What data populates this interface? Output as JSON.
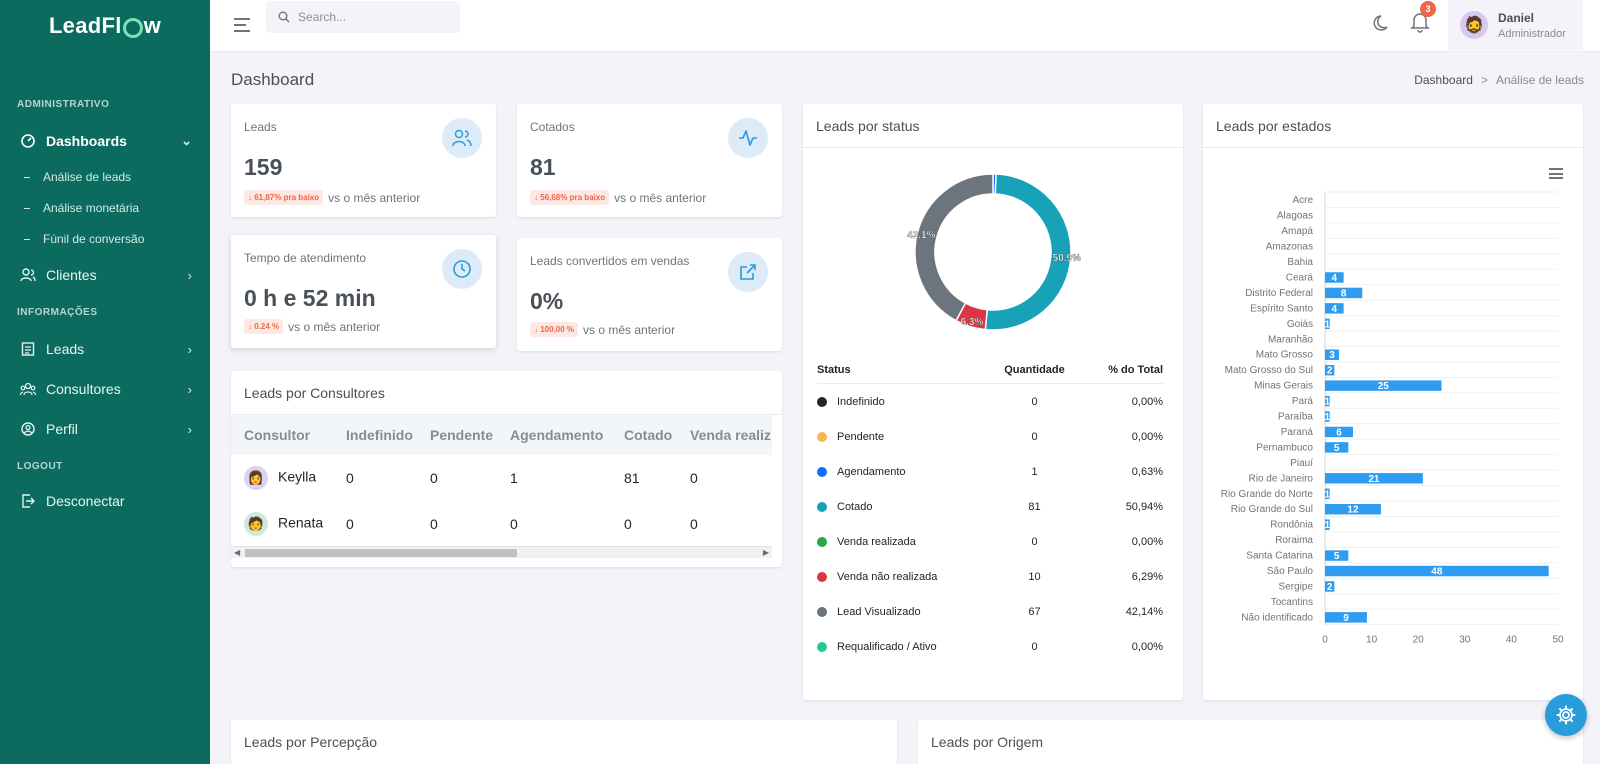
{
  "app": {
    "logo_left": "LeadFl",
    "logo_right": "w"
  },
  "sidebar": {
    "section_admin": "ADMINISTRATIVO",
    "dashboards": "Dashboards",
    "sub_items": [
      "Análise de leads",
      "Análise monetária",
      "Fúnil de conversão"
    ],
    "clientes": "Clientes",
    "section_info": "INFORMAÇÕES",
    "leads": "Leads",
    "consultores": "Consultores",
    "perfil": "Perfil",
    "section_logout": "LOGOUT",
    "desconectar": "Desconectar"
  },
  "topbar": {
    "search_placeholder": "Search...",
    "notifications_count": "3",
    "user_name": "Daniel",
    "user_role": "Administrador"
  },
  "page": {
    "title": "Dashboard",
    "breadcrumb_home": "Dashboard",
    "breadcrumb_sep": ">",
    "breadcrumb_current": "Análise de leads"
  },
  "stats": {
    "leads": {
      "label": "Leads",
      "value": "159",
      "pill": "↓ 61,87% pra baixo",
      "compare": "vs o mês anterior"
    },
    "cotados": {
      "label": "Cotados",
      "value": "81",
      "pill": "↓ 56,68% pra baixo",
      "compare": "vs o mês anterior"
    },
    "tempo": {
      "label": "Tempo de atendimento",
      "value": "0 h e 52 min",
      "pill": "↓ 0.24 %",
      "compare": "vs o mês anterior"
    },
    "convertidos": {
      "label": "Leads convertidos em vendas",
      "value": "0%",
      "pill": "↓ 100,00 %",
      "compare": "vs o mês anterior"
    }
  },
  "consultores": {
    "title": "Leads por Consultores",
    "headers": [
      "Consultor",
      "Indefinido",
      "Pendente",
      "Agendamento",
      "Cotado",
      "Venda realiz"
    ],
    "rows": [
      {
        "name": "Keylla",
        "values": [
          "0",
          "0",
          "1",
          "81",
          "0"
        ]
      },
      {
        "name": "Renata",
        "values": [
          "0",
          "0",
          "0",
          "0",
          "0"
        ]
      }
    ]
  },
  "status": {
    "title": "Leads por status",
    "headers": [
      "Status",
      "Quantidade",
      "% do Total"
    ],
    "rows": [
      {
        "label": "Indefinido",
        "qty": "0",
        "pct": "0,00%",
        "color": "#212529"
      },
      {
        "label": "Pendente",
        "qty": "0",
        "pct": "0,00%",
        "color": "#f7b84b"
      },
      {
        "label": "Agendamento",
        "qty": "1",
        "pct": "0,63%",
        "color": "#0d6efd"
      },
      {
        "label": "Cotado",
        "qty": "81",
        "pct": "50,94%",
        "color": "#17a2b8"
      },
      {
        "label": "Venda realizada",
        "qty": "0",
        "pct": "0,00%",
        "color": "#28a745"
      },
      {
        "label": "Venda não realizada",
        "qty": "10",
        "pct": "6,29%",
        "color": "#dc3545"
      },
      {
        "label": "Lead Visualizado",
        "qty": "67",
        "pct": "42,14%",
        "color": "#6c757d"
      },
      {
        "label": "Requalificado / Ativo",
        "qty": "0",
        "pct": "0,00%",
        "color": "#20c997"
      }
    ]
  },
  "estados": {
    "title": "Leads por estados"
  },
  "bottom": {
    "percepcao": "Leads por Percepção",
    "origem": "Leads por Origem"
  },
  "chart_data": [
    {
      "type": "pie",
      "variant": "donut",
      "labels": [
        "Agendamento",
        "Cotado",
        "Venda não realizada",
        "Lead Visualizado"
      ],
      "values": [
        1,
        81,
        10,
        67
      ],
      "data_labels": [
        "",
        "50.9%",
        "6.3%",
        "42.1%"
      ],
      "colors": [
        "#0d6efd",
        "#17a2b8",
        "#dc3545",
        "#6c757d"
      ]
    },
    {
      "type": "bar",
      "orientation": "horizontal",
      "categories": [
        "Acre",
        "Alagoas",
        "Amapá",
        "Amazonas",
        "Bahia",
        "Ceará",
        "Distrito Federal",
        "Espírito Santo",
        "Goiás",
        "Maranhão",
        "Mato Grosso",
        "Mato Grosso do Sul",
        "Minas Gerais",
        "Pará",
        "Paraíba",
        "Paraná",
        "Pernambuco",
        "Piauí",
        "Rio de Janeiro",
        "Rio Grande do Norte",
        "Rio Grande do Sul",
        "Rondônia",
        "Roraima",
        "Santa Catarina",
        "São Paulo",
        "Sergipe",
        "Tocantins",
        "Não identificado"
      ],
      "values": [
        0,
        0,
        0,
        0,
        0,
        4,
        8,
        4,
        1,
        0,
        3,
        2,
        25,
        1,
        1,
        6,
        5,
        0,
        21,
        1,
        12,
        1,
        0,
        5,
        48,
        2,
        0,
        9
      ],
      "xlim": [
        0,
        50
      ],
      "xticks": [
        0,
        10,
        20,
        30,
        40,
        50
      ],
      "color": "#2e9cf0"
    }
  ]
}
